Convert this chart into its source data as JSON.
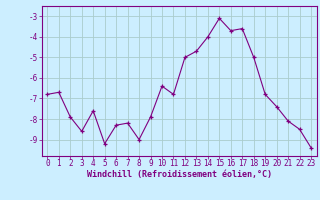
{
  "x": [
    0,
    1,
    2,
    3,
    4,
    5,
    6,
    7,
    8,
    9,
    10,
    11,
    12,
    13,
    14,
    15,
    16,
    17,
    18,
    19,
    20,
    21,
    22,
    23
  ],
  "y": [
    -6.8,
    -6.7,
    -7.9,
    -8.6,
    -7.6,
    -9.2,
    -8.3,
    -8.2,
    -9.0,
    -7.9,
    -6.4,
    -6.8,
    -5.0,
    -4.7,
    -4.0,
    -3.1,
    -3.7,
    -3.6,
    -5.0,
    -6.8,
    -7.4,
    -8.1,
    -8.5,
    -9.4
  ],
  "line_color": "#800080",
  "marker": "+",
  "bg_color": "#cceeff",
  "grid_color": "#aacccc",
  "xlabel": "Windchill (Refroidissement éolien,°C)",
  "xlabel_color": "#800080",
  "xlabel_fontsize": 6.0,
  "tick_fontsize": 5.5,
  "yticks": [
    -9,
    -8,
    -7,
    -6,
    -5,
    -4,
    -3
  ],
  "ylim": [
    -9.8,
    -2.5
  ],
  "xlim": [
    -0.5,
    23.5
  ],
  "xtick_labels": [
    "0",
    "1",
    "2",
    "3",
    "4",
    "5",
    "6",
    "7",
    "8",
    "9",
    "10",
    "11",
    "12",
    "13",
    "14",
    "15",
    "16",
    "17",
    "18",
    "19",
    "20",
    "21",
    "22",
    "23"
  ]
}
